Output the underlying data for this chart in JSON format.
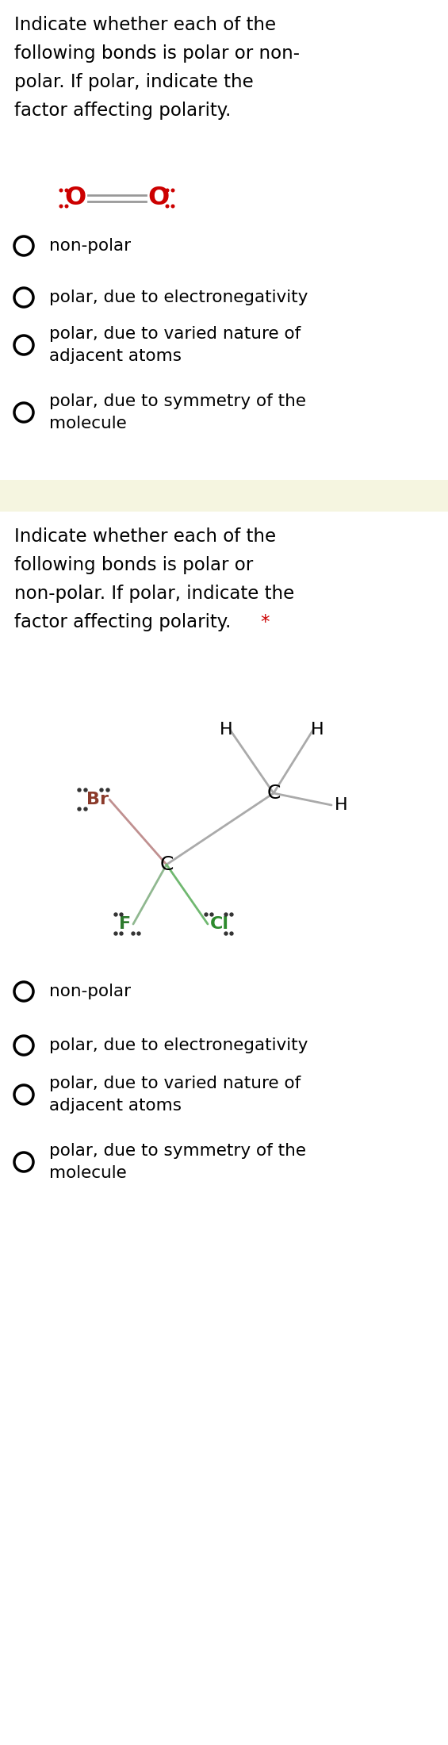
{
  "bg_color": "#ffffff",
  "section1_title_lines": [
    "Indicate whether each of the",
    "following bonds is polar or non-",
    "polar. If polar, indicate the",
    "factor affecting polarity."
  ],
  "section2_title_lines": [
    "Indicate whether each of the",
    "following bonds is polar or",
    "non-polar. If polar, indicate the",
    "factor affecting polarity. *"
  ],
  "options": [
    "non-polar",
    "polar, due to electronegativity",
    "polar, due to varied nature of\nadjacent atoms",
    "polar, due to symmetry of the\nmolecule"
  ],
  "text_color": "#000000",
  "title_fontsize": 16.5,
  "option_fontsize": 15.5,
  "radio_color": "#000000",
  "o2_color": "#cc0000",
  "br_color": "#8B3A2A",
  "f_color": "#2d7a2d",
  "cl_color": "#2d8a2d",
  "bond_gray": "#aaaaaa",
  "bond_red": "#c09090",
  "bond_green_f": "#90b890",
  "bond_green_cl": "#70b870",
  "separator_color": "#f5f5e0",
  "dot_color": "#333333"
}
